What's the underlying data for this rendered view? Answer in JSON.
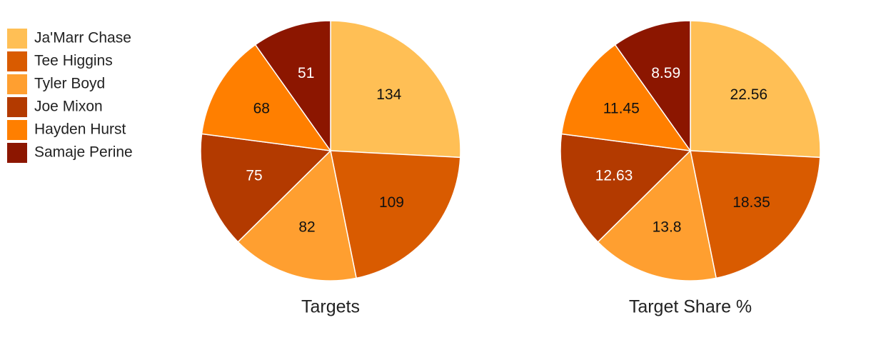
{
  "chart_data": [
    {
      "type": "pie",
      "title": "Targets",
      "categories": [
        "Ja'Marr Chase",
        "Tee Higgins",
        "Tyler Boyd",
        "Joe Mixon",
        "Hayden Hurst",
        "Samaje Perine"
      ],
      "values": [
        134,
        109,
        82,
        75,
        68,
        51
      ],
      "colors": [
        "#FFBF55",
        "#D95B00",
        "#FF9F30",
        "#B33A00",
        "#FF7F00",
        "#8C1600"
      ]
    },
    {
      "type": "pie",
      "title": "Target Share %",
      "categories": [
        "Ja'Marr Chase",
        "Tee Higgins",
        "Tyler Boyd",
        "Joe Mixon",
        "Hayden Hurst",
        "Samaje Perine"
      ],
      "values": [
        22.56,
        18.35,
        13.8,
        12.63,
        11.45,
        8.59
      ],
      "colors": [
        "#FFBF55",
        "#D95B00",
        "#FF9F30",
        "#B33A00",
        "#FF7F00",
        "#8C1600"
      ]
    }
  ]
}
